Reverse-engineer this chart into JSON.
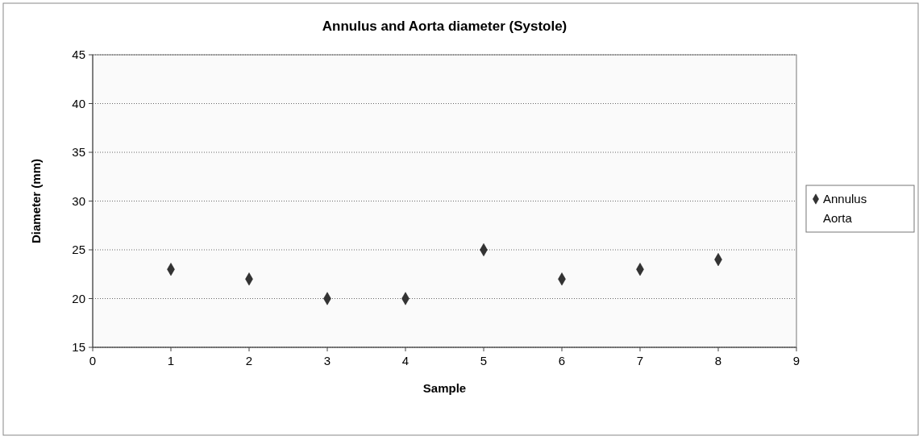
{
  "chart_data": {
    "type": "scatter",
    "title": "Annulus and Aorta diameter (Systole)",
    "xlabel": "Sample",
    "ylabel": "Diameter (mm)",
    "x": [
      1,
      2,
      3,
      4,
      5,
      6,
      7,
      8
    ],
    "series": [
      {
        "name": "Annulus",
        "color": "#333333",
        "marker": "diamond",
        "values": [
          23,
          22,
          20,
          20,
          25,
          22,
          23,
          24
        ]
      },
      {
        "name": "Aorta",
        "marker": "none",
        "values": [
          null,
          null,
          null,
          null,
          null,
          null,
          null,
          null
        ]
      }
    ],
    "xlim": [
      0,
      9
    ],
    "xticks": [
      0,
      1,
      2,
      3,
      4,
      5,
      6,
      7,
      8,
      9
    ],
    "ylim": [
      15,
      45
    ],
    "yticks": [
      15,
      20,
      25,
      30,
      35,
      40,
      45
    ],
    "grid": "y",
    "legend": "right"
  }
}
